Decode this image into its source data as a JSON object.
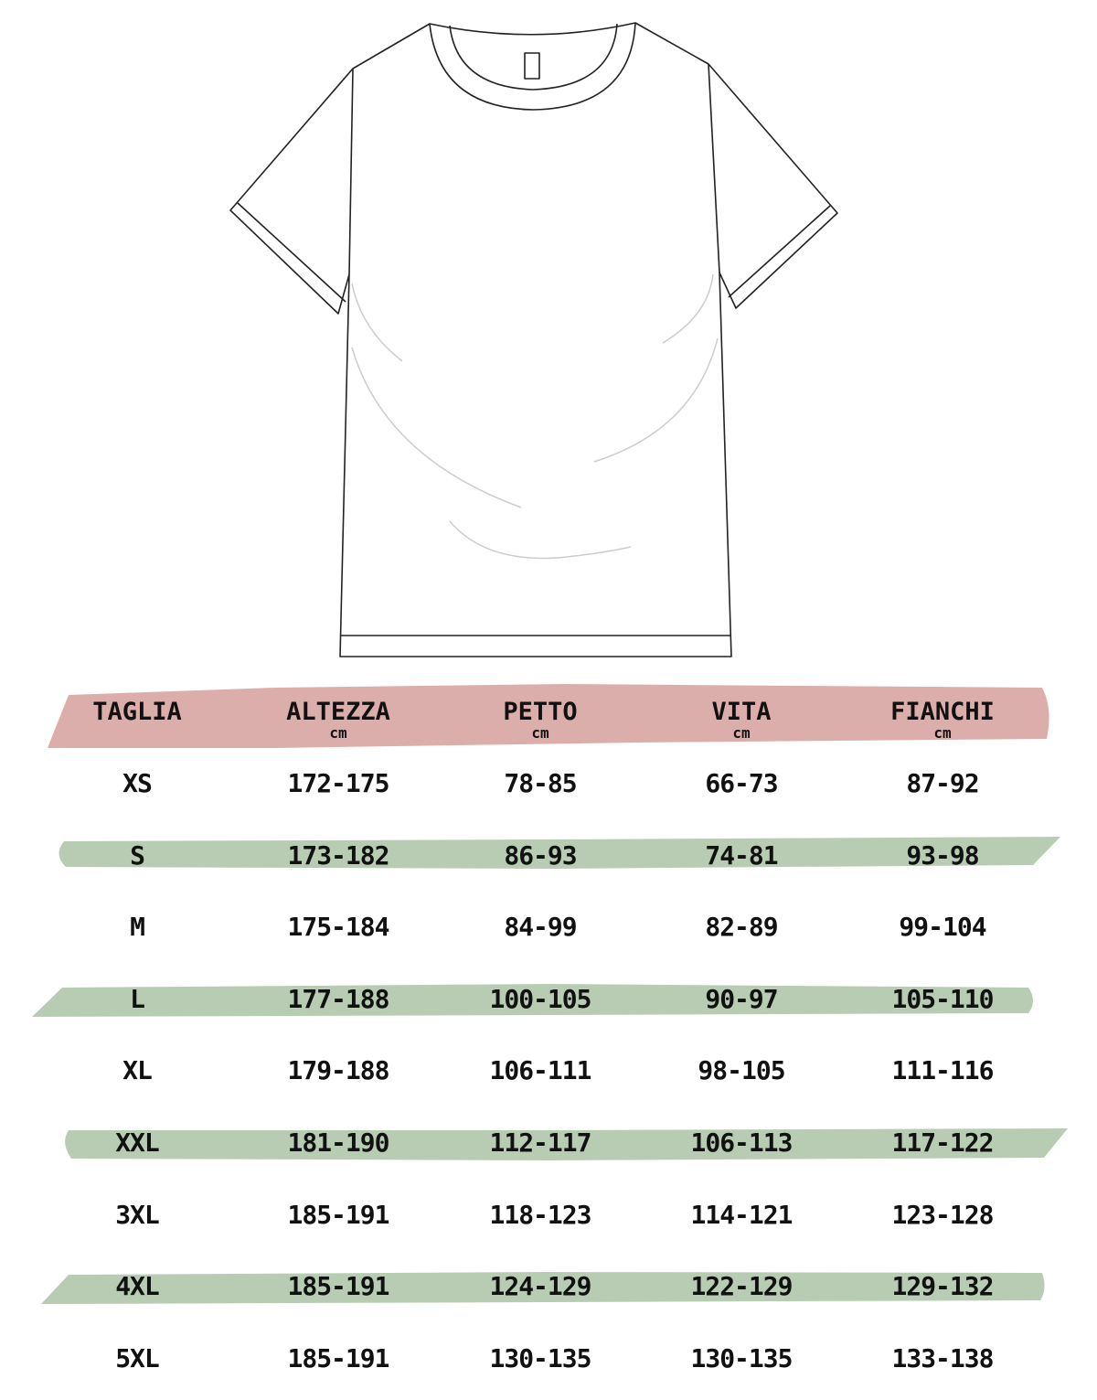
{
  "colors": {
    "header_band": "#dcaeab",
    "row_band": "#b8ccb3",
    "outline": "#222222"
  },
  "illustration": "t-shirt-outline",
  "table": {
    "headers": [
      {
        "label": "TAGLIA",
        "unit": ""
      },
      {
        "label": "ALTEZZA",
        "unit": "cm"
      },
      {
        "label": "PETTO",
        "unit": "cm"
      },
      {
        "label": "VITA",
        "unit": "cm"
      },
      {
        "label": "FIANCHI",
        "unit": "cm"
      }
    ],
    "rows": [
      [
        "XS",
        "172-175",
        "78-85",
        "66-73",
        "87-92"
      ],
      [
        "S",
        "173-182",
        "86-93",
        "74-81",
        "93-98"
      ],
      [
        "M",
        "175-184",
        "84-99",
        "82-89",
        "99-104"
      ],
      [
        "L",
        "177-188",
        "100-105",
        "90-97",
        "105-110"
      ],
      [
        "XL",
        "179-188",
        "106-111",
        "98-105",
        "111-116"
      ],
      [
        "XXL",
        "181-190",
        "112-117",
        "106-113",
        "117-122"
      ],
      [
        "3XL",
        "185-191",
        "118-123",
        "114-121",
        "123-128"
      ],
      [
        "4XL",
        "185-191",
        "124-129",
        "122-129",
        "129-132"
      ],
      [
        "5XL",
        "185-191",
        "130-135",
        "130-135",
        "133-138"
      ]
    ]
  }
}
